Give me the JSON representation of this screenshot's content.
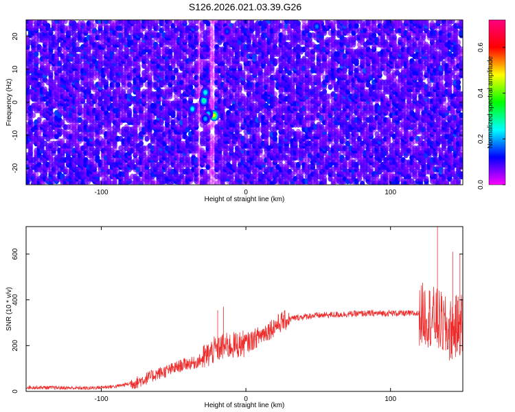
{
  "title": "S126.2026.021.03.39.G26",
  "chart_data": [
    {
      "type": "heatmap",
      "xlabel": "Height of straight line (km)",
      "ylabel": "Frequency (Hz)",
      "xlim": [
        -152,
        150
      ],
      "ylim": [
        -25,
        25
      ],
      "xticks": [
        -100,
        0,
        100
      ],
      "yticks": [
        -20,
        -10,
        0,
        10,
        20
      ],
      "colorbar": {
        "label": "Normalized spectral amplitude",
        "range": [
          0,
          0.72
        ],
        "ticks": [
          0.0,
          0.2,
          0.4,
          0.6
        ],
        "colormap": [
          "#ff00ff",
          "#0000ff",
          "#00ffff",
          "#00ff00",
          "#ffff00",
          "#ff0000",
          "#ff0080"
        ]
      },
      "background_level": 0.09,
      "peaks": [
        {
          "x": -22,
          "y": -4,
          "value": 0.48
        },
        {
          "x": -29,
          "y": 0.5,
          "value": 0.3
        },
        {
          "x": -28,
          "y": 3,
          "value": 0.25
        },
        {
          "x": -37,
          "y": -2,
          "value": 0.24
        },
        {
          "x": -26,
          "y": -3.5,
          "value": 0.22
        },
        {
          "x": -28,
          "y": -5,
          "value": 0.2
        },
        {
          "x": 49,
          "y": 23,
          "value": 0.18
        },
        {
          "x": -13,
          "y": 21.5,
          "value": 0.15
        }
      ],
      "low_amplitude_bands": [
        [
          -34,
          -31
        ],
        [
          -25,
          -22
        ]
      ]
    },
    {
      "type": "line",
      "xlabel": "Height of straight line (km)",
      "ylabel": "SNR (10 * v/v)",
      "xlim": [
        -152,
        150
      ],
      "ylim": [
        0,
        720
      ],
      "xticks": [
        -100,
        0,
        100
      ],
      "yticks": [
        0,
        200,
        400,
        600
      ],
      "color": "#ee2c2c",
      "profile_x": [
        -152,
        -110,
        -90,
        -75,
        -62,
        -52,
        -42,
        -35,
        -28,
        -22,
        -16,
        -10,
        -4,
        0,
        5,
        10,
        15,
        20,
        25,
        30,
        35,
        45,
        60,
        80,
        100,
        118,
        125,
        130,
        135,
        140,
        145,
        150
      ],
      "profile_y": [
        18,
        14,
        22,
        40,
        75,
        95,
        120,
        125,
        150,
        180,
        195,
        200,
        205,
        210,
        225,
        245,
        265,
        285,
        305,
        315,
        322,
        330,
        335,
        340,
        342,
        340,
        335,
        320,
        300,
        260,
        280,
        300
      ],
      "peaks": [
        {
          "x": 132.5,
          "y": 720
        },
        {
          "x": 143,
          "y": 610
        },
        {
          "x": 148,
          "y": 600
        },
        {
          "x": -15.5,
          "y": 370
        },
        {
          "x": -19.5,
          "y": 355
        }
      ]
    }
  ]
}
